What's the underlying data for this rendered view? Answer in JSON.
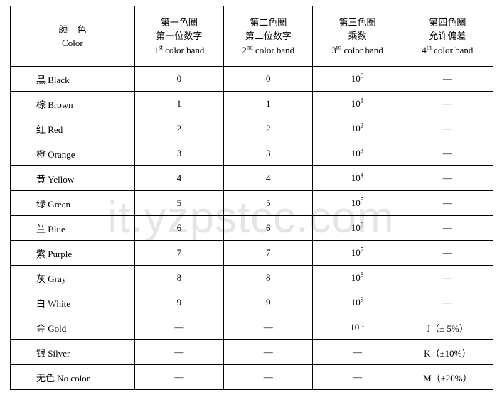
{
  "watermark": "it.yzpstcc.com",
  "headers": {
    "color": {
      "line1_a": "颜",
      "line1_b": "色",
      "line2": "Color"
    },
    "band1": {
      "line1": "第一色圈",
      "line2": "第一位数字",
      "line3_pre": "1",
      "line3_sup": "st",
      "line3_post": " color band"
    },
    "band2": {
      "line1": "第二色圈",
      "line2": "第二位数字",
      "line3_pre": "2",
      "line3_sup": "nd",
      "line3_post": " color band"
    },
    "band3": {
      "line1": "第三色圈",
      "line2": "乘数",
      "line3_pre": "3",
      "line3_sup": "rd",
      "line3_post": " color band"
    },
    "band4": {
      "line1": "第四色圈",
      "line2": "允许偏差",
      "line3_pre": "4",
      "line3_sup": "th",
      "line3_post": " color band"
    }
  },
  "rows": [
    {
      "color": "黑 Black",
      "d1": "0",
      "d2": "0",
      "mult_base": "10",
      "mult_exp": "0",
      "tol": "—"
    },
    {
      "color": "棕 Brown",
      "d1": "1",
      "d2": "1",
      "mult_base": "10",
      "mult_exp": "1",
      "tol": "—"
    },
    {
      "color": "红 Red",
      "d1": "2",
      "d2": "2",
      "mult_base": "10",
      "mult_exp": "2",
      "tol": "—"
    },
    {
      "color": "橙 Orange",
      "d1": "3",
      "d2": "3",
      "mult_base": "10",
      "mult_exp": "3",
      "tol": "—"
    },
    {
      "color": "黄 Yellow",
      "d1": "4",
      "d2": "4",
      "mult_base": "10",
      "mult_exp": "4",
      "tol": "—"
    },
    {
      "color": "绿 Green",
      "d1": "5",
      "d2": "5",
      "mult_base": "10",
      "mult_exp": "5",
      "tol": "—"
    },
    {
      "color": "兰 Blue",
      "d1": "6",
      "d2": "6",
      "mult_base": "10",
      "mult_exp": "6",
      "tol": "—"
    },
    {
      "color": "紫 Purple",
      "d1": "7",
      "d2": "7",
      "mult_base": "10",
      "mult_exp": "7",
      "tol": "—"
    },
    {
      "color": "灰 Gray",
      "d1": "8",
      "d2": "8",
      "mult_base": "10",
      "mult_exp": "8",
      "tol": "—"
    },
    {
      "color": "白 White",
      "d1": "9",
      "d2": "9",
      "mult_base": "10",
      "mult_exp": "9",
      "tol": "—"
    },
    {
      "color": "金 Gold",
      "d1": "—",
      "d2": "—",
      "mult_base": "10",
      "mult_exp": "-1",
      "tol": "J（± 5%）"
    },
    {
      "color": "银 Silver",
      "d1": "—",
      "d2": "—",
      "mult_plain": "—",
      "tol": "K（±10%）"
    },
    {
      "color": "无色 No color",
      "d1": "—",
      "d2": "—",
      "mult_plain": "—",
      "tol": "M（±20%）"
    }
  ]
}
